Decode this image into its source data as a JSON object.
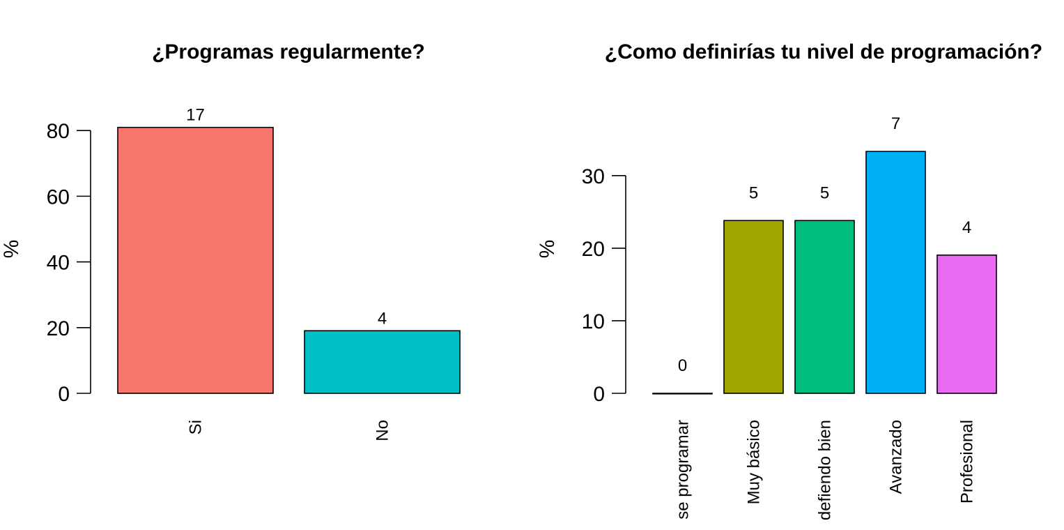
{
  "chart_data": [
    {
      "type": "bar",
      "title": "¿Programas regularmente?",
      "ylabel": "%",
      "categories": [
        "Si",
        "No"
      ],
      "values": [
        80.95,
        19.05
      ],
      "data_labels": [
        "17",
        "4"
      ],
      "yticks": [
        0,
        20,
        40,
        60,
        80
      ],
      "ylim": [
        0,
        85
      ],
      "colors": [
        "#F8766D",
        "#00BFC4"
      ],
      "grid": false
    },
    {
      "type": "bar",
      "title": "¿Como definirías tu nivel de programación?",
      "ylabel": "%",
      "categories": [
        "se programar",
        "Muy básico",
        "defiendo bien",
        "Avanzado",
        "Profesional"
      ],
      "values": [
        0,
        23.81,
        23.81,
        33.33,
        19.05
      ],
      "data_labels": [
        "0",
        "5",
        "5",
        "7",
        "4"
      ],
      "yticks": [
        0,
        10,
        20,
        30
      ],
      "ylim": [
        0,
        36
      ],
      "colors": [
        "#F8766D",
        "#A3A500",
        "#00BF7D",
        "#00B0F6",
        "#E76BF3"
      ],
      "grid": false
    }
  ]
}
